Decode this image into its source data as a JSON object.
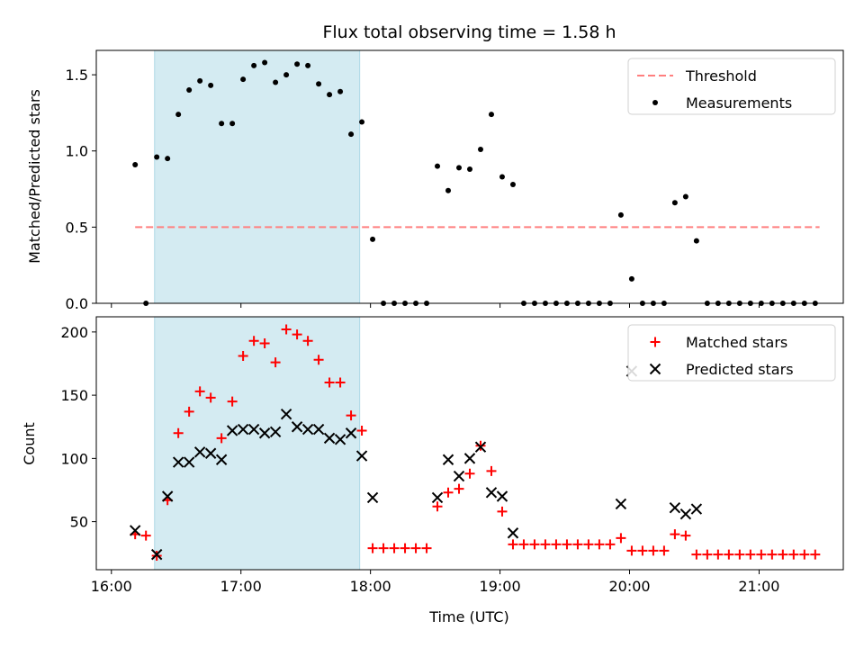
{
  "chart_data": [
    {
      "type": "scatter",
      "title": "Flux total observing time = 1.58 h",
      "xlabel": "",
      "ylabel": "Matched/Predicted stars",
      "xlim": [
        "15:53",
        "21:39"
      ],
      "ylim": [
        0,
        1.66
      ],
      "xticks": [
        "16:00",
        "17:00",
        "18:00",
        "19:00",
        "20:00",
        "21:00"
      ],
      "yticks": [
        "0.0",
        "0.5",
        "1.0",
        "1.5"
      ],
      "ytick_values": [
        0,
        0.5,
        1.0,
        1.5
      ],
      "shaded_span": {
        "x": [
          "16:20",
          "17:55"
        ],
        "color": "#add8e6"
      },
      "threshold": {
        "name": "Threshold",
        "y": 0.5,
        "x": [
          "16:11",
          "21:28"
        ],
        "color": "#ff7f7f"
      },
      "legend": {
        "position": "upper right",
        "entries": [
          "Threshold",
          "Measurements"
        ]
      },
      "series": [
        {
          "name": "Measurements",
          "marker": "dot",
          "color": "#000000",
          "x": [
            "16:11",
            "16:16",
            "16:21",
            "16:26",
            "16:31",
            "16:36",
            "16:41",
            "16:46",
            "16:51",
            "16:56",
            "17:01",
            "17:06",
            "17:11",
            "17:16",
            "17:21",
            "17:26",
            "17:31",
            "17:36",
            "17:41",
            "17:46",
            "17:51",
            "17:56",
            "18:01",
            "18:06",
            "18:11",
            "18:16",
            "18:21",
            "18:26",
            "18:31",
            "18:36",
            "18:41",
            "18:46",
            "18:51",
            "18:56",
            "19:01",
            "19:06",
            "19:11",
            "19:16",
            "19:21",
            "19:26",
            "19:31",
            "19:36",
            "19:41",
            "19:46",
            "19:51",
            "19:56",
            "20:01",
            "20:06",
            "20:11",
            "20:16",
            "20:21",
            "20:26",
            "20:31",
            "20:36",
            "20:41",
            "20:46",
            "20:51",
            "20:56",
            "21:01",
            "21:06",
            "21:11",
            "21:16",
            "21:21",
            "21:26"
          ],
          "y": [
            0.91,
            0.0,
            0.96,
            0.95,
            1.24,
            1.4,
            1.46,
            1.43,
            1.18,
            1.18,
            1.47,
            1.56,
            1.58,
            1.45,
            1.5,
            1.57,
            1.56,
            1.44,
            1.37,
            1.39,
            1.11,
            1.19,
            0.42,
            0.0,
            0.0,
            0.0,
            0.0,
            0.0,
            0.9,
            0.74,
            0.89,
            0.88,
            1.01,
            1.24,
            0.83,
            0.78,
            0.0,
            0.0,
            0.0,
            0.0,
            0.0,
            0.0,
            0.0,
            0.0,
            0.0,
            0.58,
            0.16,
            0.0,
            0.0,
            0.0,
            0.66,
            0.7,
            0.41,
            0.0,
            0.0,
            0.0,
            0.0,
            0.0,
            0.0,
            0.0,
            0.0,
            0.0,
            0.0,
            0.0
          ]
        }
      ]
    },
    {
      "type": "scatter",
      "title": "",
      "xlabel": "Time (UTC)",
      "ylabel": "Count",
      "xlim": [
        "15:53",
        "21:39"
      ],
      "ylim": [
        12,
        212
      ],
      "xticks": [
        "16:00",
        "17:00",
        "18:00",
        "19:00",
        "20:00",
        "21:00"
      ],
      "yticks": [
        "50",
        "100",
        "150",
        "200"
      ],
      "ytick_values": [
        50,
        100,
        150,
        200
      ],
      "shaded_span": {
        "x": [
          "16:20",
          "17:55"
        ],
        "color": "#add8e6"
      },
      "legend": {
        "position": "upper right",
        "entries": [
          "Matched stars",
          "Predicted stars"
        ]
      },
      "series": [
        {
          "name": "Matched stars",
          "marker": "plus",
          "color": "#ff0000",
          "x": [
            "16:11",
            "16:16",
            "16:21",
            "16:26",
            "16:31",
            "16:36",
            "16:41",
            "16:46",
            "16:51",
            "16:56",
            "17:01",
            "17:06",
            "17:11",
            "17:16",
            "17:21",
            "17:26",
            "17:31",
            "17:36",
            "17:41",
            "17:46",
            "17:51",
            "17:56",
            "18:01",
            "18:06",
            "18:11",
            "18:16",
            "18:21",
            "18:26",
            "18:31",
            "18:36",
            "18:41",
            "18:46",
            "18:51",
            "18:56",
            "19:01",
            "19:06",
            "19:11",
            "19:16",
            "19:21",
            "19:26",
            "19:31",
            "19:36",
            "19:41",
            "19:46",
            "19:51",
            "19:56",
            "20:01",
            "20:06",
            "20:11",
            "20:16",
            "20:21",
            "20:26",
            "20:31",
            "20:36",
            "20:41",
            "20:46",
            "20:51",
            "20:56",
            "21:01",
            "21:06",
            "21:11",
            "21:16",
            "21:21",
            "21:26"
          ],
          "y": [
            40,
            39,
            23,
            67,
            120,
            137,
            153,
            148,
            116,
            145,
            181,
            193,
            191,
            176,
            202,
            198,
            193,
            178,
            160,
            160,
            134,
            122,
            29,
            29,
            29,
            29,
            29,
            29,
            62,
            73,
            76,
            88,
            110,
            90,
            58,
            32,
            32,
            32,
            32,
            32,
            32,
            32,
            32,
            32,
            32,
            37,
            27,
            27,
            27,
            27,
            40,
            39,
            24,
            24,
            24,
            24,
            24,
            24,
            24,
            24,
            24,
            24,
            24,
            24
          ]
        },
        {
          "name": "Predicted stars",
          "marker": "x",
          "color": "#000000",
          "x": [
            "16:11",
            "16:21",
            "16:26",
            "16:31",
            "16:36",
            "16:41",
            "16:46",
            "16:51",
            "16:56",
            "17:01",
            "17:06",
            "17:11",
            "17:16",
            "17:21",
            "17:26",
            "17:31",
            "17:36",
            "17:41",
            "17:46",
            "17:51",
            "17:56",
            "18:01",
            "18:31",
            "18:36",
            "18:41",
            "18:46",
            "18:51",
            "18:56",
            "19:01",
            "19:06",
            "19:56",
            "20:01",
            "20:21",
            "20:26",
            "20:31"
          ],
          "y": [
            43,
            24,
            70,
            97,
            97,
            105,
            104,
            99,
            122,
            123,
            123,
            120,
            121,
            135,
            125,
            123,
            123,
            116,
            115,
            120,
            102,
            69,
            69,
            99,
            86,
            100,
            109,
            73,
            70,
            41,
            64,
            169,
            61,
            56,
            60
          ]
        }
      ]
    }
  ]
}
